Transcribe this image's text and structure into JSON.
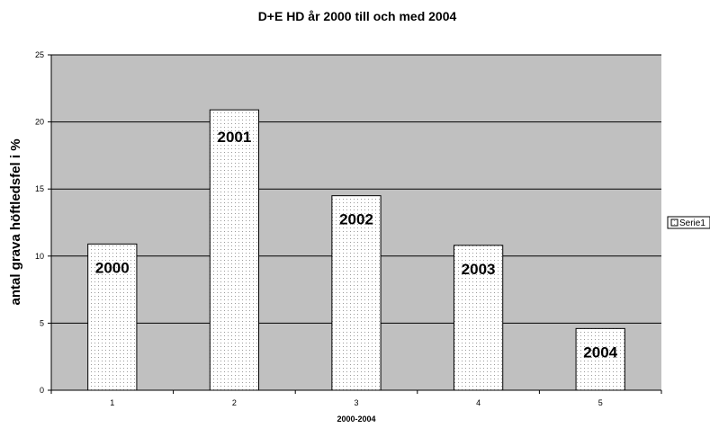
{
  "chart_data": {
    "type": "bar",
    "title": "D+E HD år 2000 till och med 2004",
    "xlabel": "2000-2004",
    "ylabel": "antal grava höftledsfel i %",
    "categories": [
      "1",
      "2",
      "3",
      "4",
      "5"
    ],
    "series": [
      {
        "name": "Serie1",
        "values": [
          10.9,
          20.9,
          14.5,
          10.8,
          4.6
        ],
        "labels": [
          "2000",
          "2001",
          "2002",
          "2003",
          "2004"
        ]
      }
    ],
    "ylim": [
      0,
      25
    ],
    "yticks": [
      0,
      5,
      10,
      15,
      20,
      25
    ],
    "grid": true,
    "legend": "right",
    "colors": {
      "plot_bg": "#c0c0c0",
      "bar_fill": "#ffffff",
      "bar_dots": "#9a9a9a",
      "grid": "#000000"
    }
  }
}
